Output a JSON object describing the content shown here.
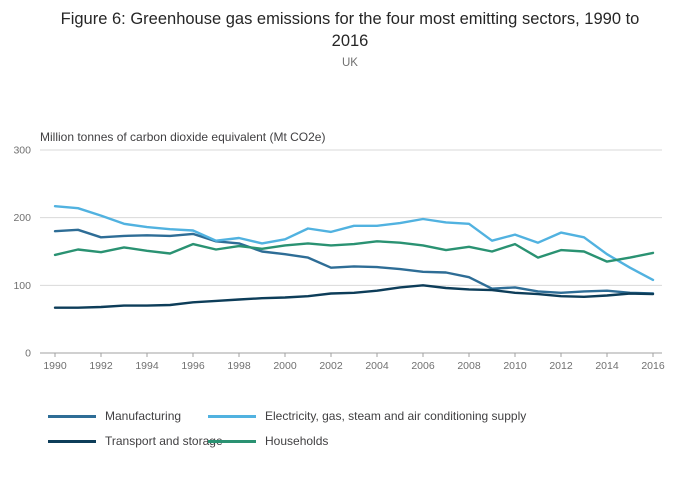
{
  "title": "Figure 6: Greenhouse gas emissions for the four most emitting sectors, 1990 to 2016",
  "subtitle": "UK",
  "axis_unit_label": "Million tonnes of carbon dioxide equivalent (Mt CO2e)",
  "chart_data": {
    "type": "line",
    "title": "Figure 6: Greenhouse gas emissions for the four most emitting sectors, 1990 to 2016",
    "subtitle": "UK",
    "ylabel": "Million tonnes of carbon dioxide equivalent (Mt CO2e)",
    "xlabel": "",
    "ylim": [
      0,
      300
    ],
    "yticks": [
      0,
      100,
      200,
      300
    ],
    "xticks": [
      1990,
      1992,
      1994,
      1996,
      1998,
      2000,
      2002,
      2004,
      2006,
      2008,
      2010,
      2012,
      2014,
      2016
    ],
    "grid": true,
    "legend_position": "bottom",
    "x": [
      1990,
      1991,
      1992,
      1993,
      1994,
      1995,
      1996,
      1997,
      1998,
      1999,
      2000,
      2001,
      2002,
      2003,
      2004,
      2005,
      2006,
      2007,
      2008,
      2009,
      2010,
      2011,
      2012,
      2013,
      2014,
      2015,
      2016
    ],
    "series": [
      {
        "name": "Manufacturing",
        "color": "#2e6d96",
        "values": [
          180,
          182,
          171,
          173,
          174,
          173,
          176,
          165,
          162,
          150,
          146,
          141,
          126,
          128,
          127,
          124,
          120,
          119,
          112,
          95,
          97,
          91,
          89,
          91,
          92,
          89,
          88
        ]
      },
      {
        "name": "Electricity, gas, steam and air conditioning supply",
        "color": "#51b2e0",
        "values": [
          217,
          214,
          203,
          191,
          186,
          183,
          181,
          166,
          170,
          162,
          168,
          184,
          179,
          188,
          188,
          192,
          198,
          193,
          191,
          166,
          175,
          163,
          178,
          171,
          146,
          126,
          108
        ]
      },
      {
        "name": "Transport and storage",
        "color": "#0d3d59",
        "values": [
          67,
          67,
          68,
          70,
          70,
          71,
          75,
          77,
          79,
          81,
          82,
          84,
          88,
          89,
          92,
          97,
          100,
          96,
          94,
          93,
          89,
          87,
          84,
          83,
          85,
          88,
          87
        ]
      },
      {
        "name": "Households",
        "color": "#2a9272",
        "values": [
          145,
          153,
          149,
          156,
          151,
          147,
          161,
          153,
          158,
          154,
          159,
          162,
          159,
          161,
          165,
          163,
          159,
          152,
          157,
          150,
          161,
          141,
          152,
          150,
          135,
          141,
          148
        ]
      }
    ]
  }
}
